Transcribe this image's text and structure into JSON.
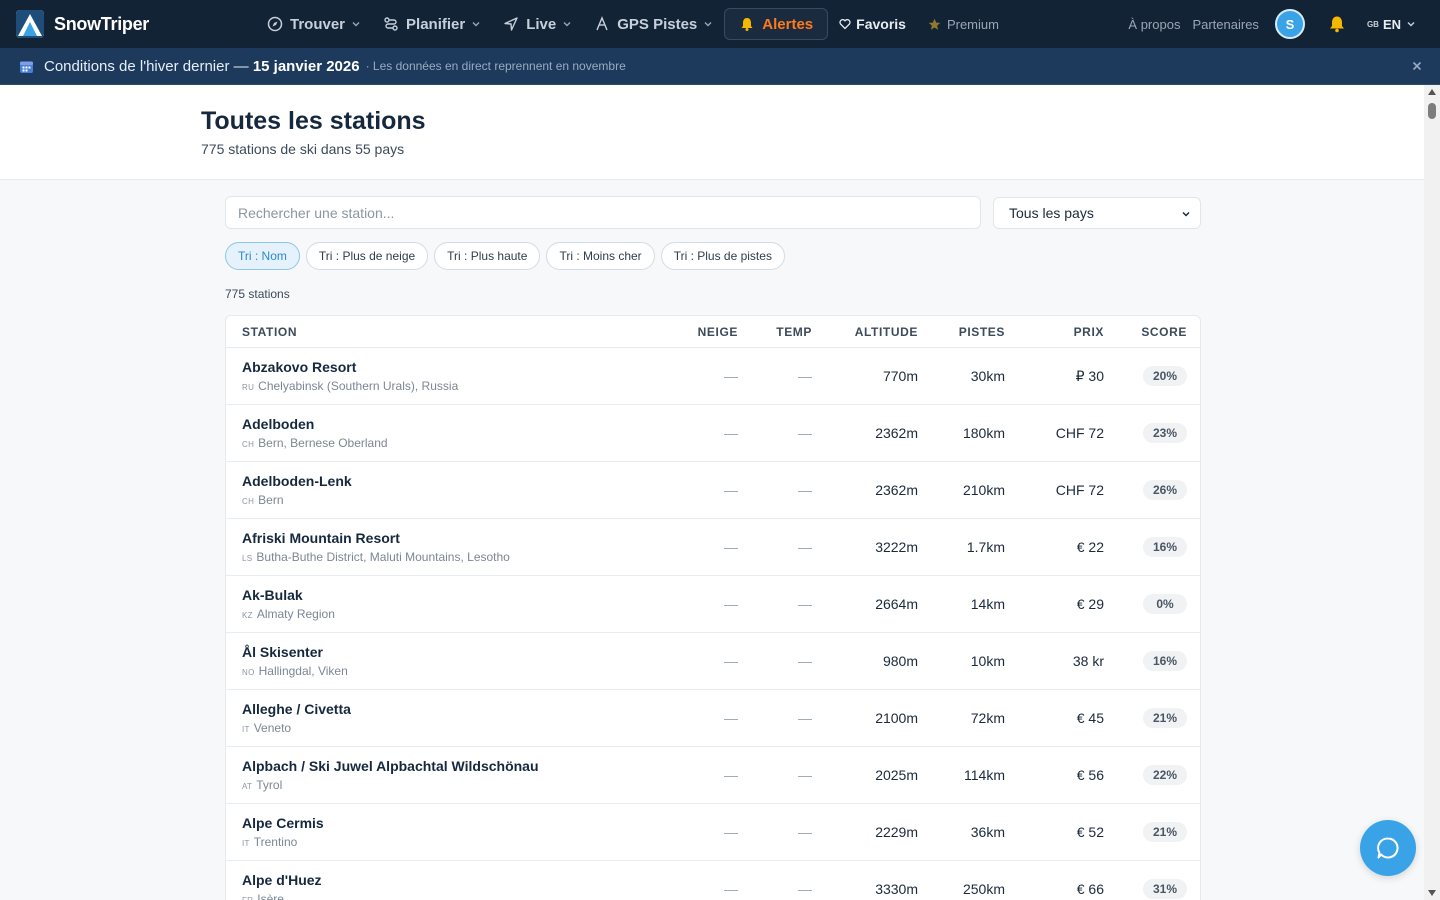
{
  "brand": {
    "name": "SnowTriper"
  },
  "nav": {
    "items": [
      {
        "label": "Trouver",
        "icon": "compass-icon",
        "has_chevron": true
      },
      {
        "label": "Planifier",
        "icon": "route-icon",
        "has_chevron": true
      },
      {
        "label": "Live",
        "icon": "navigation-arrow-icon",
        "has_chevron": true
      },
      {
        "label": "GPS Pistes",
        "icon": "mountain-a-icon",
        "has_chevron": true
      }
    ],
    "alert_label": "Alertes",
    "favorites_label": "Favoris",
    "premium_label": "Premium",
    "about_label": "À propos",
    "partners_label": "Partenaires",
    "avatar_initial": "S",
    "lang_country": "GB",
    "lang_label": "EN"
  },
  "banner": {
    "title_prefix": "Conditions de l'hiver dernier — ",
    "title_date": "15 janvier 2026",
    "subtitle": "· Les données en direct reprennent en novembre"
  },
  "header": {
    "title": "Toutes les stations",
    "subtitle": "775 stations de ski dans 55 pays"
  },
  "filters": {
    "search_placeholder": "Rechercher une station...",
    "country_selected": "Tous les pays",
    "sort_chips": [
      {
        "label": "Tri : Nom",
        "active": true
      },
      {
        "label": "Tri : Plus de neige",
        "active": false
      },
      {
        "label": "Tri : Plus haute",
        "active": false
      },
      {
        "label": "Tri : Moins cher",
        "active": false
      },
      {
        "label": "Tri : Plus de pistes",
        "active": false
      }
    ],
    "result_count": "775 stations"
  },
  "table": {
    "columns": {
      "station": "STATION",
      "neige": "NEIGE",
      "temp": "TEMP",
      "altitude": "ALTITUDE",
      "pistes": "PISTES",
      "prix": "PRIX",
      "score": "SCORE"
    },
    "rows": [
      {
        "name": "Abzakovo Resort",
        "cc": "RU",
        "location": "Chelyabinsk (Southern Urals), Russia",
        "neige": "—",
        "temp": "—",
        "altitude": "770m",
        "pistes": "30km",
        "prix": "₽ 30",
        "score": "20%"
      },
      {
        "name": "Adelboden",
        "cc": "CH",
        "location": "Bern, Bernese Oberland",
        "neige": "—",
        "temp": "—",
        "altitude": "2362m",
        "pistes": "180km",
        "prix": "CHF 72",
        "score": "23%"
      },
      {
        "name": "Adelboden-Lenk",
        "cc": "CH",
        "location": "Bern",
        "neige": "—",
        "temp": "—",
        "altitude": "2362m",
        "pistes": "210km",
        "prix": "CHF 72",
        "score": "26%"
      },
      {
        "name": "Afriski Mountain Resort",
        "cc": "LS",
        "location": "Butha-Buthe District, Maluti Mountains, Lesotho",
        "neige": "—",
        "temp": "—",
        "altitude": "3222m",
        "pistes": "1.7km",
        "prix": "€ 22",
        "score": "16%"
      },
      {
        "name": "Ak-Bulak",
        "cc": "KZ",
        "location": "Almaty Region",
        "neige": "—",
        "temp": "—",
        "altitude": "2664m",
        "pistes": "14km",
        "prix": "€ 29",
        "score": "0%"
      },
      {
        "name": "Ål Skisenter",
        "cc": "NO",
        "location": "Hallingdal, Viken",
        "neige": "—",
        "temp": "—",
        "altitude": "980m",
        "pistes": "10km",
        "prix": "38 kr",
        "score": "16%"
      },
      {
        "name": "Alleghe / Civetta",
        "cc": "IT",
        "location": "Veneto",
        "neige": "—",
        "temp": "—",
        "altitude": "2100m",
        "pistes": "72km",
        "prix": "€ 45",
        "score": "21%"
      },
      {
        "name": "Alpbach / Ski Juwel Alpbachtal Wildschönau",
        "cc": "AT",
        "location": "Tyrol",
        "neige": "—",
        "temp": "—",
        "altitude": "2025m",
        "pistes": "114km",
        "prix": "€ 56",
        "score": "22%"
      },
      {
        "name": "Alpe Cermis",
        "cc": "IT",
        "location": "Trentino",
        "neige": "—",
        "temp": "—",
        "altitude": "2229m",
        "pistes": "36km",
        "prix": "€ 52",
        "score": "21%"
      },
      {
        "name": "Alpe d'Huez",
        "cc": "FR",
        "location": "Isère",
        "neige": "—",
        "temp": "—",
        "altitude": "3330m",
        "pistes": "250km",
        "prix": "€ 66",
        "score": "31%"
      }
    ]
  },
  "colors": {
    "nav_bg": "#132336",
    "banner_bg": "#1d3a5c",
    "accent": "#3aa3e8",
    "alert": "#ff7a1a",
    "bell": "#f5b800"
  },
  "icons": {
    "calendar": "calendar-icon",
    "close": "close-icon",
    "chat": "chat-bubble-icon",
    "bell": "bell-icon",
    "heart": "heart-icon",
    "star": "star-icon"
  }
}
